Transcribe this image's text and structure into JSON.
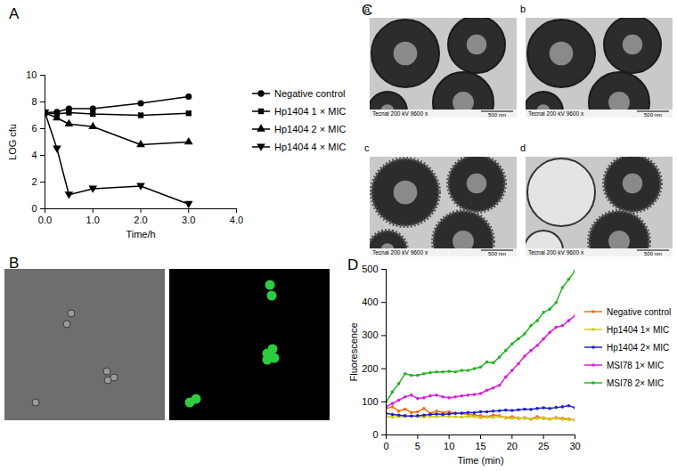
{
  "chart_data": [
    {
      "panel": "A",
      "type": "line",
      "x_label": "Time/h",
      "y_label": "LOG cfu",
      "xlim": [
        0,
        4
      ],
      "xticks": [
        0,
        1,
        2,
        3,
        4
      ],
      "ylim": [
        0,
        10
      ],
      "yticks": [
        0,
        2,
        4,
        6,
        8,
        10
      ],
      "grid": false,
      "legend": "right",
      "x": [
        0,
        0.25,
        0.5,
        1,
        2,
        3
      ],
      "series": [
        {
          "name": "Negative control",
          "color": "#000000",
          "marker": "circle",
          "values": [
            7.2,
            7.25,
            7.5,
            7.5,
            7.9,
            8.4
          ]
        },
        {
          "name": "Hp1404  1 × MIC",
          "color": "#000000",
          "marker": "square",
          "values": [
            7.2,
            7.1,
            7.2,
            7.1,
            7.0,
            7.15
          ]
        },
        {
          "name": "Hp1404  2 × MIC",
          "color": "#000000",
          "marker": "triangle",
          "values": [
            7.2,
            6.8,
            6.35,
            6.15,
            4.8,
            5.0
          ]
        },
        {
          "name": "Hp1404  4 × MIC",
          "color": "#000000",
          "marker": "triangle-down",
          "values": [
            7.2,
            4.5,
            1.05,
            1.5,
            1.7,
            0.35
          ]
        }
      ]
    },
    {
      "panel": "D",
      "type": "line",
      "x_label": "Time (min)",
      "y_label": "Fluorescence",
      "xlim": [
        0,
        30
      ],
      "xticks": [
        0,
        5,
        10,
        15,
        20,
        25,
        30
      ],
      "ylim": [
        0,
        500
      ],
      "yticks": [
        0,
        100,
        200,
        300,
        400,
        500
      ],
      "grid": false,
      "legend": "right",
      "x": [
        0,
        1,
        2,
        3,
        4,
        5,
        6,
        7,
        8,
        9,
        10,
        11,
        12,
        13,
        14,
        15,
        16,
        17,
        18,
        19,
        20,
        21,
        22,
        23,
        24,
        25,
        26,
        27,
        28,
        29,
        30
      ],
      "series": [
        {
          "name": "Negative control",
          "color": "#ff6a13",
          "marker": "circle",
          "values": [
            80,
            85,
            72,
            78,
            68,
            70,
            80,
            65,
            72,
            68,
            70,
            66,
            65,
            62,
            60,
            58,
            55,
            60,
            58,
            52,
            55,
            50,
            52,
            48,
            55,
            50,
            48,
            52,
            50,
            48,
            45
          ]
        },
        {
          "name": "Hp1404 1× MIC",
          "color": "#cfc81a",
          "marker": "circle",
          "values": [
            55,
            54,
            55,
            56,
            57,
            55,
            54,
            56,
            55,
            57,
            56,
            55,
            54,
            56,
            55,
            52,
            54,
            53,
            55,
            52,
            50,
            52,
            50,
            48,
            50,
            52,
            48,
            50,
            47,
            46,
            45
          ]
        },
        {
          "name": "Hp1404 2× MIC",
          "color": "#1f1fd0",
          "marker": "circle",
          "values": [
            65,
            62,
            60,
            58,
            57,
            58,
            60,
            62,
            63,
            62,
            64,
            65,
            66,
            68,
            67,
            70,
            70,
            72,
            73,
            75,
            74,
            76,
            78,
            77,
            80,
            82,
            80,
            83,
            85,
            88,
            82
          ]
        },
        {
          "name": "MSI78 1× MIC",
          "color": "#d81ed8",
          "marker": "circle",
          "values": [
            85,
            95,
            105,
            115,
            120,
            110,
            112,
            118,
            120,
            115,
            112,
            115,
            118,
            120,
            122,
            125,
            135,
            142,
            150,
            175,
            195,
            215,
            238,
            255,
            270,
            290,
            310,
            325,
            330,
            345,
            360
          ]
        },
        {
          "name": "MSI78 2× MIC",
          "color": "#22b422",
          "marker": "circle",
          "values": [
            100,
            130,
            155,
            185,
            180,
            180,
            185,
            188,
            190,
            190,
            192,
            190,
            195,
            195,
            200,
            205,
            220,
            218,
            235,
            255,
            275,
            290,
            305,
            330,
            345,
            370,
            380,
            400,
            445,
            470,
            495
          ]
        }
      ]
    }
  ],
  "images": [
    {
      "panel": "B"
    },
    {
      "panel": "C",
      "subpanels": [
        {
          "label": "a",
          "caption": "Tecnai 200 kV 9600 x",
          "scale_bar": "500 nm"
        },
        {
          "label": "b",
          "caption": "Tecnai 200 kV 9600 x",
          "scale_bar": "500 nm"
        },
        {
          "label": "c",
          "caption": "Tecnai 200 kV 9600 x",
          "scale_bar": "500 nm"
        },
        {
          "label": "d",
          "caption": "Tecnai 200 kV 9600 x",
          "scale_bar": "500 nm"
        }
      ]
    }
  ]
}
